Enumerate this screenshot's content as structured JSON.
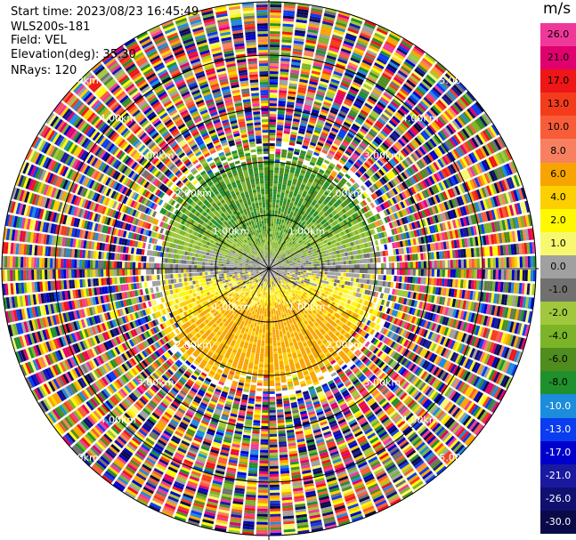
{
  "header": {
    "start_time": "Start time: 2023/08/23 16:45:49",
    "instrument": "WLS200s-181",
    "field": "Field: VEL",
    "elevation": "Elevation(deg): 35.30",
    "nrays": "NRays: 120"
  },
  "colorbar": {
    "unit": "m/s",
    "bins": [
      {
        "label": "26.0",
        "color": "#f0389a"
      },
      {
        "label": "21.0",
        "color": "#e0006e"
      },
      {
        "label": "17.0",
        "color": "#ee1616"
      },
      {
        "label": "13.0",
        "color": "#f43c1c"
      },
      {
        "label": "10.0",
        "color": "#f85c38"
      },
      {
        "label": "8.0",
        "color": "#f88060"
      },
      {
        "label": "6.0",
        "color": "#f8a400"
      },
      {
        "label": "4.0",
        "color": "#fcd000"
      },
      {
        "label": "2.0",
        "color": "#fef800"
      },
      {
        "label": "1.0",
        "color": "#f8f870"
      },
      {
        "label": "0.0",
        "color": "#a0a0a0"
      },
      {
        "label": "-1.0",
        "color": "#707070"
      },
      {
        "label": "-2.0",
        "color": "#a0c83c"
      },
      {
        "label": "-4.0",
        "color": "#7cb428"
      },
      {
        "label": "-6.0",
        "color": "#508c1e"
      },
      {
        "label": "-8.0",
        "color": "#20902c"
      },
      {
        "label": "-10.0",
        "color": "#1c8cdc"
      },
      {
        "label": "-13.0",
        "color": "#0a3cf0"
      },
      {
        "label": "-17.0",
        "color": "#0000cc"
      },
      {
        "label": "-21.0",
        "color": "#1a1aa0"
      },
      {
        "label": "-26.0",
        "color": "#101070"
      },
      {
        "label": "-30.0",
        "color": "#0a0a48"
      }
    ]
  },
  "chart_data": {
    "type": "ppi",
    "field": "VEL",
    "elevation_deg": 35.3,
    "nrays": 120,
    "range_rings": [
      {
        "label": "1.00km"
      },
      {
        "label": "2.00km"
      },
      {
        "label": "3.00km"
      },
      {
        "label": "4.00km"
      },
      {
        "label": "5.00km"
      }
    ]
  }
}
